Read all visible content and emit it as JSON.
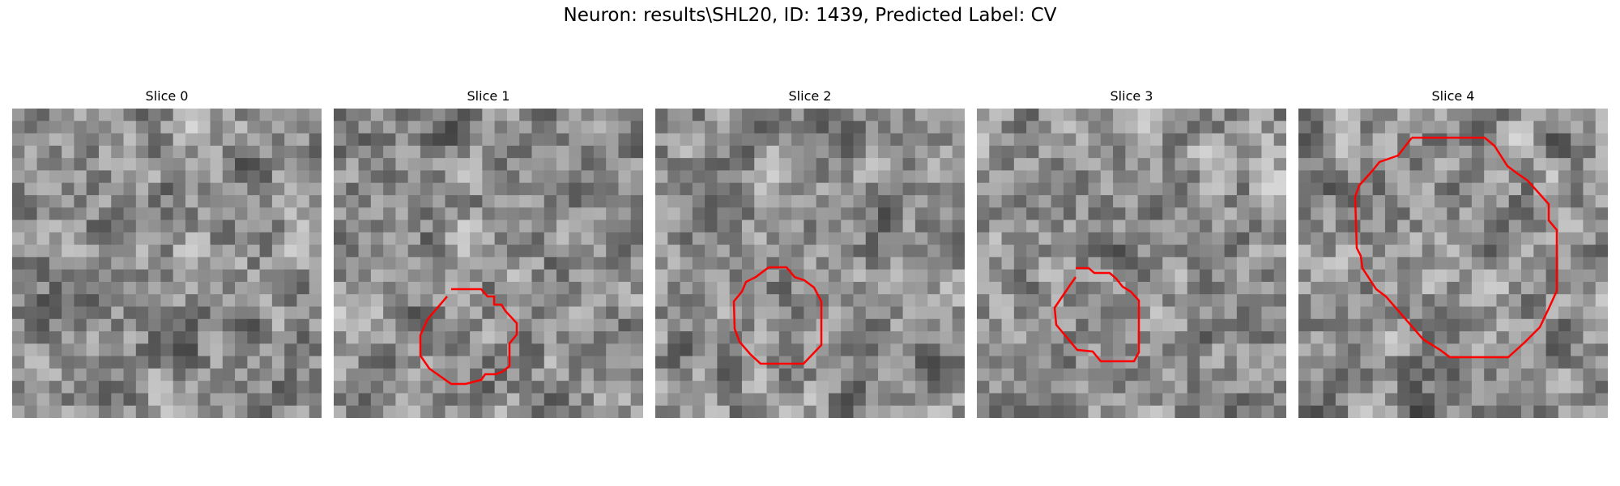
{
  "figure": {
    "title": "Neuron: results\\SHL20, ID: 1439, Predicted Label: CV"
  },
  "outline_color": "#ff0000",
  "panels": [
    {
      "title": "Slice 0",
      "seed": 11,
      "has_outline": false
    },
    {
      "title": "Slice 1",
      "seed": 23,
      "has_outline": true
    },
    {
      "title": "Slice 2",
      "seed": 37,
      "has_outline": true
    },
    {
      "title": "Slice 3",
      "seed": 51,
      "has_outline": true
    },
    {
      "title": "Slice 4",
      "seed": 67,
      "has_outline": true
    }
  ]
}
